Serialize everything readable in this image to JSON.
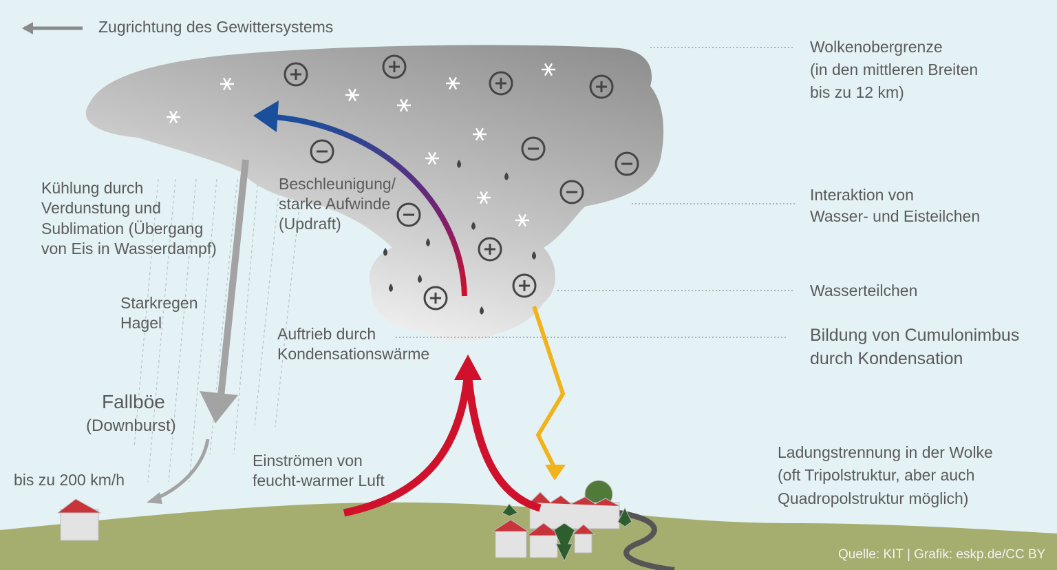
{
  "direction": "Zugrichtung des Gewittersystems",
  "labels": [
    {
      "lines": [
        "Wolkenobergrenze",
        "(in den mittleren Breiten",
        "bis zu 12 km)"
      ]
    },
    {
      "lines": [
        "Interaktion von",
        "Wasser- und Eisteilchen"
      ]
    },
    {
      "lines": [
        "Wasserteilchen"
      ]
    },
    {
      "lines": [
        "Bildung von Cumulonimbus",
        "durch Kondensation"
      ]
    },
    {
      "lines": [
        "Ladungstrennung in der Wolke",
        "(oft Tripolstruktur, aber auch",
        "Quadropolstruktur möglich)"
      ]
    },
    {
      "lines": [
        "Kühlung durch",
        "Verdunstung und",
        "Sublimation (Übergang",
        "von Eis in Wasserdampf)"
      ]
    },
    {
      "lines": [
        "Beschleunigung/",
        "starke Aufwinde",
        "(Updraft)"
      ]
    },
    {
      "lines": [
        "Starkregen",
        "Hagel"
      ]
    },
    {
      "lines": [
        "Auftrieb durch",
        "Kondensationswärme"
      ]
    },
    {
      "lines": [
        "Fallböe",
        "(Downburst)"
      ]
    },
    {
      "lines": [
        "Einströmen von",
        "feucht-warmer Luft"
      ]
    },
    {
      "lines": [
        "bis zu 200 km/h"
      ]
    }
  ],
  "source": "Quelle: KIT | Grafik: eskp.de/CC BY"
}
